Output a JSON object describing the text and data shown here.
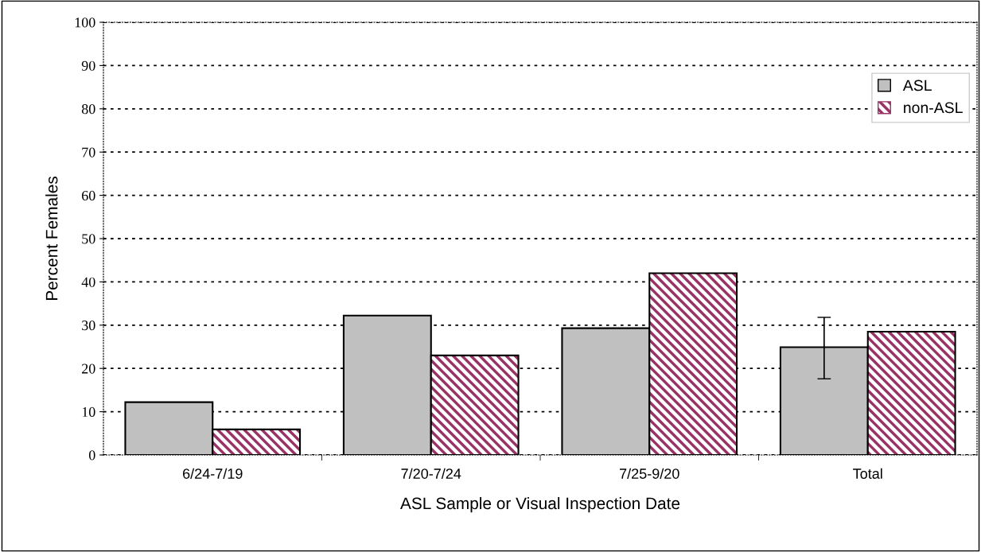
{
  "chart_data": {
    "type": "bar",
    "xlabel": "ASL Sample or Visual Inspection Date",
    "ylabel": "Percent Females",
    "categories": [
      "6/24-7/19",
      "7/20-7/24",
      "7/25-9/20",
      "Total"
    ],
    "series": [
      {
        "name": "ASL",
        "color": "#c0c0c0",
        "values": [
          12.2,
          32.2,
          29.3,
          24.9
        ],
        "errors": [
          null,
          null,
          null,
          [
            17.6,
            31.8
          ]
        ]
      },
      {
        "name": "non-ASL",
        "color": "#993366",
        "values": [
          5.9,
          23.0,
          42.0,
          28.5
        ]
      }
    ],
    "ylim": [
      0,
      100
    ],
    "yticks": [
      0,
      10,
      20,
      30,
      40,
      50,
      60,
      70,
      80,
      90,
      100
    ],
    "grid": "y",
    "legend": "top right"
  }
}
